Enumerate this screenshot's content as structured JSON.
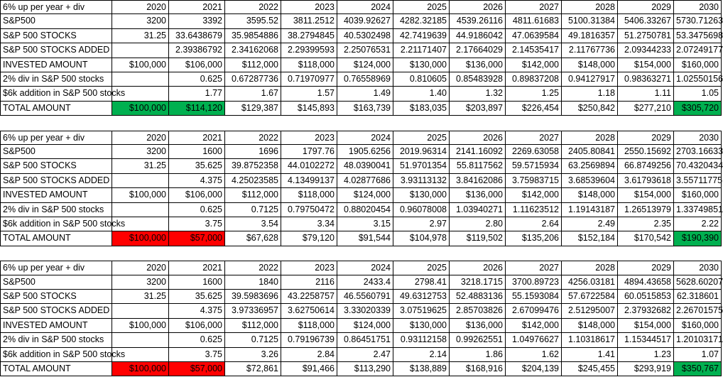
{
  "tables": [
    {
      "header": {
        "label": "6% up per year + div",
        "values": [
          "2020",
          "2021",
          "2022",
          "2023",
          "2024",
          "2025",
          "2026",
          "2027",
          "2028",
          "2029",
          "2030"
        ]
      },
      "rows": [
        {
          "label": "S&P500",
          "values": [
            "3200",
            "3392",
            "3595.52",
            "3811.2512",
            "4039.92627",
            "4282.32185",
            "4539.26116",
            "4811.61683",
            "5100.31384",
            "5406.33267",
            "5730.71263"
          ]
        },
        {
          "label": "S&P 500 STOCKS",
          "values": [
            "31.25",
            "33.6438679",
            "35.9854886",
            "38.2794845",
            "40.5302498",
            "42.7419639",
            "44.9186042",
            "47.0639584",
            "49.1816357",
            "51.2750781",
            "53.3475698"
          ]
        },
        {
          "label": "S&P 500 STOCKS ADDED",
          "values": [
            null,
            "2.39386792",
            "2.34162068",
            "2.29399593",
            "2.25076531",
            "2.21171407",
            "2.17664029",
            "2.14535417",
            "2.11767736",
            "2.09344233",
            "2.07249177"
          ]
        },
        {
          "label": "INVESTED AMOUNT",
          "values": [
            "$100,000",
            "$106,000",
            "$112,000",
            "$118,000",
            "$124,000",
            "$130,000",
            "$136,000",
            "$142,000",
            "$148,000",
            "$154,000",
            "$160,000"
          ]
        },
        {
          "label": "2% div in S&P 500 stocks",
          "values": [
            null,
            "0.625",
            "0.67287736",
            "0.71970977",
            "0.76558969",
            "0.810605",
            "0.85483928",
            "0.89837208",
            "0.94127917",
            "0.98363271",
            "1.02550156"
          ]
        },
        {
          "label": "$6k addition in S&P 500 stocks",
          "values": [
            null,
            "1.77",
            "1.67",
            "1.57",
            "1.49",
            "1.40",
            "1.32",
            "1.25",
            "1.18",
            "1.11",
            "1.05"
          ]
        },
        {
          "label": "TOTAL AMOUNT",
          "values": [
            "$100,000",
            "$114,120",
            "$129,387",
            "$145,893",
            "$163,739",
            "$183,035",
            "$203,897",
            "$226,454",
            "$250,842",
            "$277,210",
            "$305,720"
          ],
          "colors": [
            "#00b050",
            "#00b050",
            null,
            null,
            null,
            null,
            null,
            null,
            null,
            null,
            "#00b050"
          ]
        }
      ]
    },
    {
      "header": {
        "label": "6% up per year + div",
        "values": [
          "2020",
          "2021",
          "2022",
          "2023",
          "2024",
          "2025",
          "2026",
          "2027",
          "2028",
          "2029",
          "2030"
        ]
      },
      "rows": [
        {
          "label": "S&P500",
          "values": [
            "3200",
            "1600",
            "1696",
            "1797.76",
            "1905.6256",
            "2019.96314",
            "2141.16092",
            "2269.63058",
            "2405.80841",
            "2550.15692",
            "2703.16633"
          ]
        },
        {
          "label": "S&P 500 STOCKS",
          "values": [
            "31.25",
            "35.625",
            "39.8752358",
            "44.0102272",
            "48.0390041",
            "51.9701354",
            "55.8117562",
            "59.5715934",
            "63.2569894",
            "66.8749256",
            "70.4320434"
          ]
        },
        {
          "label": "S&P 500 STOCKS ADDED",
          "values": [
            null,
            "4.375",
            "4.25023585",
            "4.13499137",
            "4.02877686",
            "3.93113132",
            "3.84162086",
            "3.75983715",
            "3.68539604",
            "3.61793618",
            "3.55711775"
          ]
        },
        {
          "label": "INVESTED AMOUNT",
          "values": [
            "$100,000",
            "$106,000",
            "$112,000",
            "$118,000",
            "$124,000",
            "$130,000",
            "$136,000",
            "$142,000",
            "$148,000",
            "$154,000",
            "$160,000"
          ]
        },
        {
          "label": "2% div in S&P 500 stocks",
          "values": [
            null,
            "0.625",
            "0.7125",
            "0.79750472",
            "0.88020454",
            "0.96078008",
            "1.03940271",
            "1.11623512",
            "1.19143187",
            "1.26513979",
            "1.33749851"
          ]
        },
        {
          "label": "$6k addition in S&P 500 stocks",
          "values": [
            null,
            "3.75",
            "3.54",
            "3.34",
            "3.15",
            "2.97",
            "2.80",
            "2.64",
            "2.49",
            "2.35",
            "2.22"
          ]
        },
        {
          "label": "TOTAL AMOUNT",
          "values": [
            "$100,000",
            "$57,000",
            "$67,628",
            "$79,120",
            "$91,544",
            "$104,978",
            "$119,502",
            "$135,206",
            "$152,184",
            "$170,542",
            "$190,390"
          ],
          "colors": [
            "#ff0000",
            "#ff0000",
            null,
            null,
            null,
            null,
            null,
            null,
            null,
            null,
            "#00b050"
          ]
        }
      ]
    },
    {
      "header": {
        "label": "6% up per year + div",
        "values": [
          "2020",
          "2021",
          "2022",
          "2023",
          "2024",
          "2025",
          "2026",
          "2027",
          "2028",
          "2029",
          "2030"
        ]
      },
      "rows": [
        {
          "label": "S&P500",
          "values": [
            "3200",
            "1600",
            "1840",
            "2116",
            "2433.4",
            "2798.41",
            "3218.1715",
            "3700.89723",
            "4256.03181",
            "4894.43658",
            "5628.60207"
          ]
        },
        {
          "label": "S&P 500 STOCKS",
          "values": [
            "31.25",
            "35.625",
            "39.5983696",
            "43.2258757",
            "46.5560791",
            "49.6312753",
            "52.4883136",
            "55.1593084",
            "57.6722584",
            "60.0515853",
            "62.318601"
          ]
        },
        {
          "label": "S&P 500 STOCKS ADDED",
          "values": [
            null,
            "4.375",
            "3.97336957",
            "3.62750614",
            "3.33020339",
            "3.07519625",
            "2.85703826",
            "2.67099476",
            "2.51295007",
            "2.37932682",
            "2.26701575"
          ]
        },
        {
          "label": "INVESTED AMOUNT",
          "values": [
            "$100,000",
            "$106,000",
            "$112,000",
            "$118,000",
            "$124,000",
            "$130,000",
            "$136,000",
            "$142,000",
            "$148,000",
            "$154,000",
            "$160,000"
          ]
        },
        {
          "label": "2% div in S&P 500 stocks",
          "values": [
            null,
            "0.625",
            "0.7125",
            "0.79196739",
            "0.86451751",
            "0.93112158",
            "0.99262551",
            "1.04976627",
            "1.10318617",
            "1.15344517",
            "1.20103171"
          ]
        },
        {
          "label": "$6k addition in S&P 500 stocks",
          "values": [
            null,
            "3.75",
            "3.26",
            "2.84",
            "2.47",
            "2.14",
            "1.86",
            "1.62",
            "1.41",
            "1.23",
            "1.07"
          ]
        },
        {
          "label": "TOTAL AMOUNT",
          "values": [
            "$100,000",
            "$57,000",
            "$72,861",
            "$91,466",
            "$113,290",
            "$138,889",
            "$168,916",
            "$204,139",
            "$245,455",
            "$293,919",
            "$350,767"
          ],
          "colors": [
            "#ff0000",
            "#ff0000",
            null,
            null,
            null,
            null,
            null,
            null,
            null,
            null,
            "#00b050"
          ]
        }
      ]
    }
  ]
}
